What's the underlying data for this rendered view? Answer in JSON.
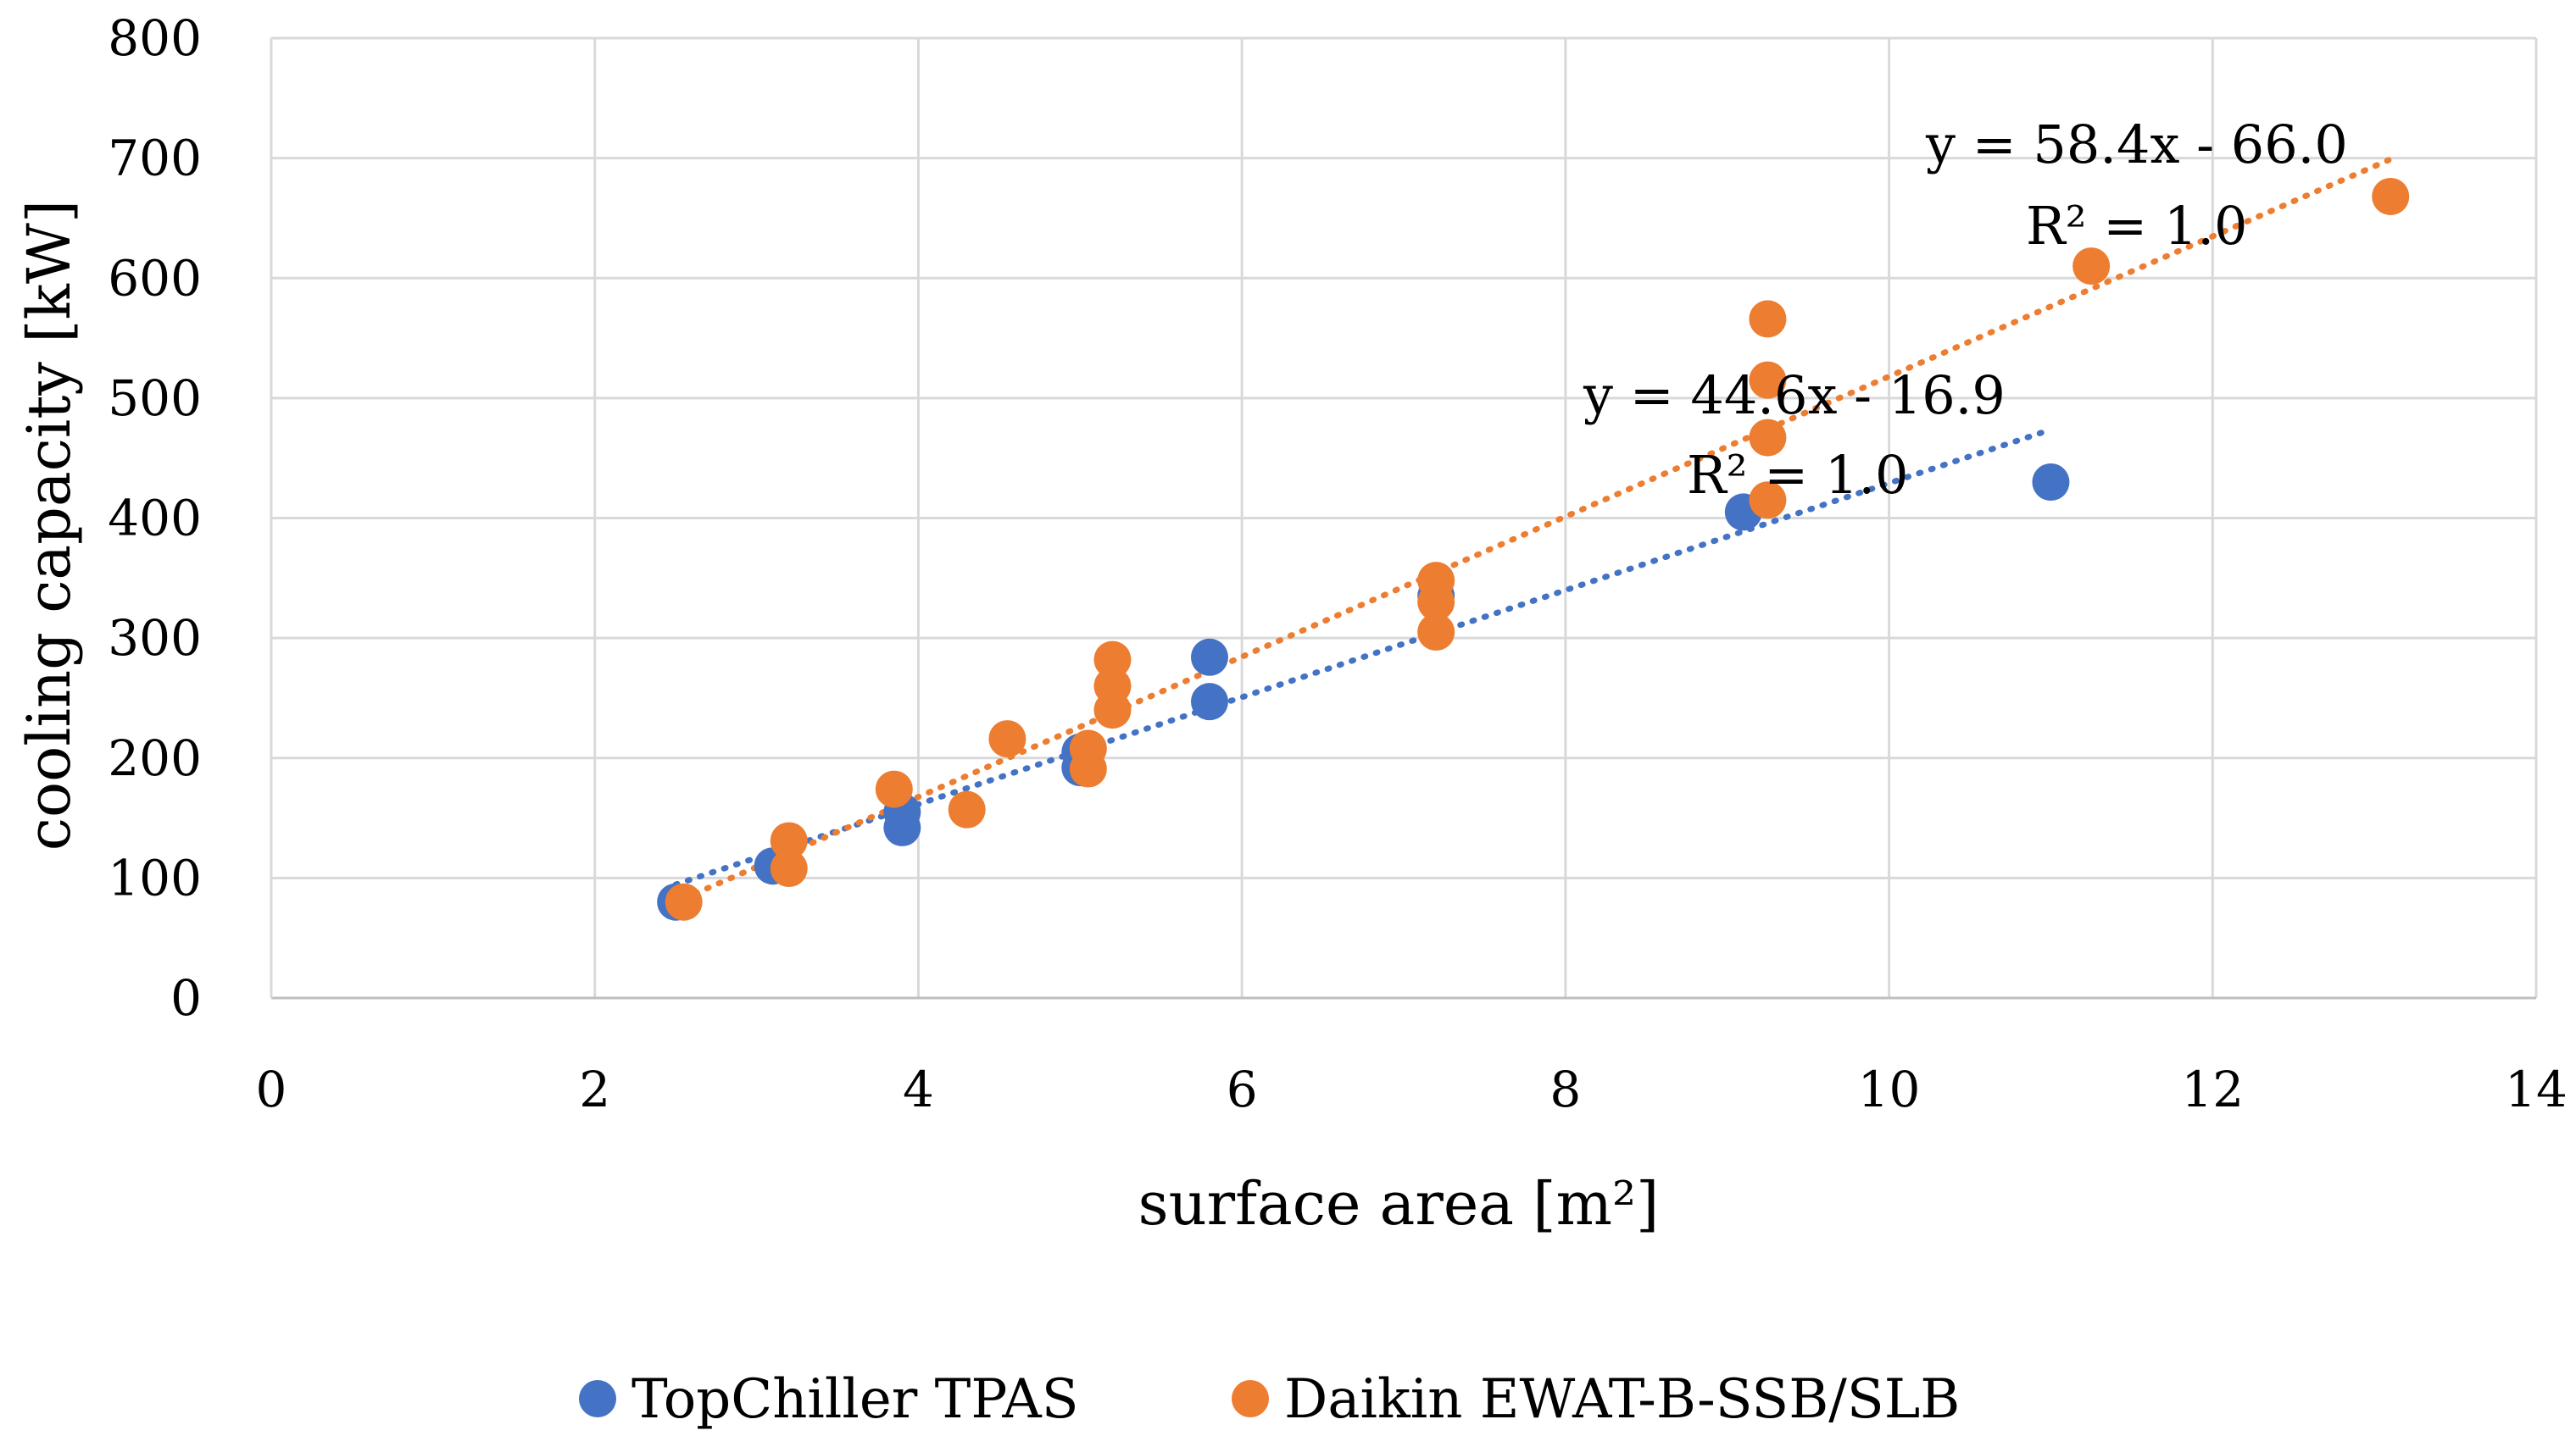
{
  "chart_data": {
    "type": "scatter",
    "title": "",
    "xlabel": "surface area [m²]",
    "ylabel": "cooling capacity [kW]",
    "xlim": [
      0,
      14
    ],
    "ylim": [
      0,
      800
    ],
    "xticks": [
      0,
      2,
      4,
      6,
      8,
      10,
      12,
      14
    ],
    "yticks": [
      0,
      100,
      200,
      300,
      400,
      500,
      600,
      700,
      800
    ],
    "grid": true,
    "legend_position": "bottom",
    "series": [
      {
        "name": "TopChiller TPAS",
        "color": "#4472C4",
        "points": [
          [
            2.5,
            80
          ],
          [
            3.1,
            110
          ],
          [
            3.9,
            142
          ],
          [
            3.9,
            155
          ],
          [
            5.0,
            192
          ],
          [
            5.0,
            205
          ],
          [
            5.8,
            247
          ],
          [
            5.8,
            284
          ],
          [
            7.2,
            335
          ],
          [
            9.1,
            405
          ],
          [
            11.0,
            430
          ]
        ],
        "trendline": {
          "slope": 44.6,
          "intercept": -16.9,
          "x_range": [
            2.5,
            11.0
          ],
          "equation": "y = 44.6x - 16.9",
          "r2": "R² = 1.0"
        }
      },
      {
        "name": "Daikin EWAT-B-SSB/SLB",
        "color": "#ED7D31",
        "points": [
          [
            2.55,
            80
          ],
          [
            3.2,
            108
          ],
          [
            3.2,
            131
          ],
          [
            3.85,
            174
          ],
          [
            4.3,
            157
          ],
          [
            4.55,
            216
          ],
          [
            5.05,
            191
          ],
          [
            5.05,
            208
          ],
          [
            5.2,
            240
          ],
          [
            5.2,
            260
          ],
          [
            5.2,
            282
          ],
          [
            7.2,
            305
          ],
          [
            7.2,
            330
          ],
          [
            7.2,
            348
          ],
          [
            9.25,
            415
          ],
          [
            9.25,
            467
          ],
          [
            9.25,
            515
          ],
          [
            9.25,
            566
          ],
          [
            11.25,
            610
          ],
          [
            13.1,
            668
          ]
        ],
        "trendline": {
          "slope": 58.4,
          "intercept": -66.0,
          "x_range": [
            2.55,
            13.1
          ],
          "equation": "y = 58.4x - 66.0",
          "r2": "R² = 1.0"
        }
      }
    ]
  }
}
